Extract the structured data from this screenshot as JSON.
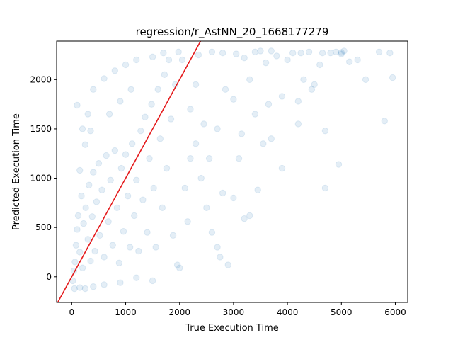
{
  "chart_data": {
    "type": "scatter",
    "title": "regression/r_AstNN_20_1668177279",
    "xlabel": "True Execution Time",
    "ylabel": "Predicted Execution Time",
    "xlim": [
      -280,
      6230
    ],
    "ylim": [
      -260,
      2390
    ],
    "xticks": [
      0,
      1000,
      2000,
      3000,
      4000,
      5000,
      6000
    ],
    "yticks": [
      0,
      500,
      1000,
      1500,
      2000
    ],
    "grid": false,
    "point_color": "#1f77b4",
    "point_alpha": 0.12,
    "reference_line": {
      "color": "#e41a1c",
      "points": [
        [
          -280,
          -280
        ],
        [
          2390,
          2390
        ]
      ]
    },
    "series": [
      {
        "points": [
          [
            20,
            -40
          ],
          [
            40,
            60
          ],
          [
            60,
            150
          ],
          [
            80,
            320
          ],
          [
            100,
            480
          ],
          [
            120,
            620
          ],
          [
            150,
            250
          ],
          [
            180,
            820
          ],
          [
            200,
            90
          ],
          [
            220,
            540
          ],
          [
            260,
            700
          ],
          [
            300,
            380
          ],
          [
            320,
            930
          ],
          [
            350,
            160
          ],
          [
            380,
            610
          ],
          [
            400,
            1060
          ],
          [
            430,
            260
          ],
          [
            460,
            760
          ],
          [
            500,
            1150
          ],
          [
            520,
            420
          ],
          [
            560,
            880
          ],
          [
            600,
            200
          ],
          [
            640,
            1230
          ],
          [
            680,
            560
          ],
          [
            720,
            980
          ],
          [
            760,
            320
          ],
          [
            800,
            1280
          ],
          [
            840,
            700
          ],
          [
            880,
            140
          ],
          [
            920,
            1100
          ],
          [
            960,
            460
          ],
          [
            1000,
            1240
          ],
          [
            1040,
            820
          ],
          [
            1080,
            300
          ],
          [
            1120,
            1350
          ],
          [
            1160,
            620
          ],
          [
            1200,
            980
          ],
          [
            1240,
            260
          ],
          [
            1280,
            1480
          ],
          [
            1320,
            780
          ],
          [
            1360,
            1620
          ],
          [
            1400,
            450
          ],
          [
            1440,
            1200
          ],
          [
            1480,
            1750
          ],
          [
            1520,
            900
          ],
          [
            1560,
            300
          ],
          [
            1600,
            1900
          ],
          [
            1640,
            1400
          ],
          [
            1680,
            700
          ],
          [
            1720,
            2050
          ],
          [
            1760,
            1100
          ],
          [
            1800,
            2200
          ],
          [
            1840,
            1600
          ],
          [
            1880,
            420
          ],
          [
            1920,
            1950
          ],
          [
            1960,
            120
          ],
          [
            2000,
            90
          ],
          [
            1980,
            2280
          ],
          [
            1700,
            2270
          ],
          [
            1500,
            2230
          ],
          [
            1200,
            2200
          ],
          [
            1000,
            2150
          ],
          [
            800,
            2090
          ],
          [
            600,
            2010
          ],
          [
            400,
            1900
          ],
          [
            300,
            1650
          ],
          [
            200,
            1500
          ],
          [
            100,
            1740
          ],
          [
            150,
            1080
          ],
          [
            250,
            1340
          ],
          [
            350,
            1480
          ],
          [
            700,
            1650
          ],
          [
            900,
            1780
          ],
          [
            1100,
            1900
          ],
          [
            2050,
            2200
          ],
          [
            2200,
            1700
          ],
          [
            2300,
            1350
          ],
          [
            2400,
            1000
          ],
          [
            2500,
            700
          ],
          [
            2600,
            450
          ],
          [
            2700,
            300
          ],
          [
            2800,
            850
          ],
          [
            2900,
            120
          ],
          [
            3000,
            1800
          ],
          [
            3200,
            2220
          ],
          [
            3300,
            2000
          ],
          [
            3400,
            1650
          ],
          [
            3500,
            2290
          ],
          [
            3600,
            2170
          ],
          [
            3700,
            1400
          ],
          [
            3800,
            2240
          ],
          [
            3900,
            1100
          ],
          [
            4000,
            2200
          ],
          [
            4100,
            2270
          ],
          [
            4200,
            1780
          ],
          [
            4300,
            2000
          ],
          [
            4400,
            2280
          ],
          [
            4500,
            1950
          ],
          [
            4600,
            2150
          ],
          [
            4700,
            900
          ],
          [
            4800,
            2270
          ],
          [
            4900,
            2280
          ],
          [
            4950,
            1140
          ],
          [
            5000,
            2260
          ],
          [
            5050,
            2290
          ],
          [
            5300,
            2200
          ],
          [
            5450,
            2000
          ],
          [
            5700,
            2280
          ],
          [
            5800,
            1580
          ],
          [
            5950,
            2020
          ],
          [
            5900,
            2270
          ],
          [
            3100,
            1200
          ],
          [
            3300,
            620
          ],
          [
            3200,
            590
          ],
          [
            3450,
            880
          ],
          [
            2750,
            200
          ],
          [
            3000,
            800
          ],
          [
            2150,
            560
          ],
          [
            1500,
            -40
          ],
          [
            1200,
            -10
          ],
          [
            900,
            -60
          ],
          [
            600,
            -80
          ],
          [
            400,
            -100
          ],
          [
            250,
            -120
          ],
          [
            150,
            -110
          ],
          [
            50,
            -120
          ],
          [
            2200,
            1200
          ],
          [
            2450,
            1550
          ],
          [
            2700,
            1500
          ],
          [
            2850,
            1900
          ],
          [
            2350,
            2250
          ],
          [
            2600,
            2280
          ],
          [
            2800,
            2270
          ],
          [
            3050,
            2260
          ],
          [
            3400,
            2280
          ],
          [
            3700,
            2290
          ],
          [
            4250,
            2270
          ],
          [
            4650,
            2270
          ],
          [
            5000,
            2275
          ],
          [
            3550,
            1350
          ],
          [
            3900,
            1830
          ],
          [
            4200,
            1550
          ],
          [
            4450,
            1900
          ],
          [
            4700,
            1480
          ],
          [
            5150,
            2180
          ],
          [
            2100,
            900
          ],
          [
            2300,
            1950
          ],
          [
            2550,
            1200
          ],
          [
            3150,
            1450
          ],
          [
            3650,
            1750
          ]
        ]
      }
    ]
  }
}
